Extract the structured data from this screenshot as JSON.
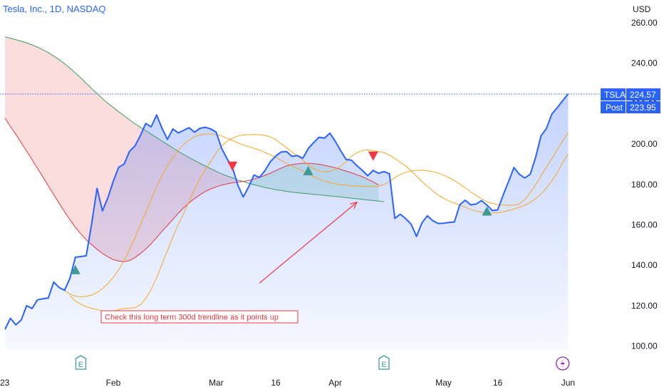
{
  "header": {
    "title": "Tesla, Inc., 1D, NASDAQ"
  },
  "colors": {
    "price_line": "#2962ff",
    "ma_fast": "#f5a623",
    "ma_slow_red": "#e0383e",
    "ma_green": "#3f9a62",
    "bearish_fill": "#fbd7d7",
    "bullish_fill": "#d6efe0",
    "price_area": "#e3ebff",
    "buy_marker": "#3d9a95",
    "sell_marker": "#f23645",
    "label_bg": "#2962ff",
    "earnings_icon": "#3d9a95",
    "flash_icon": "#9c27b0"
  },
  "chart_data": {
    "type": "line",
    "currency": "USD",
    "ylim": [
      93,
      265
    ],
    "yticks": [
      "100.00",
      "120.00",
      "140.00",
      "160.00",
      "180.00",
      "200.00",
      "220.00",
      "240.00",
      "260.00"
    ],
    "ytick_values": [
      100,
      120,
      140,
      160,
      180,
      200,
      220,
      240,
      260
    ],
    "xticks": [
      "23",
      "Feb",
      "Mar",
      "16",
      "Apr",
      "May",
      "16",
      "Jun"
    ],
    "xtick_index": [
      0,
      20,
      39,
      50,
      61,
      81,
      91,
      104
    ],
    "series": [
      {
        "key": "price",
        "values": [
          108.1,
          113.6,
          110.3,
          112.7,
          119.8,
          118.4,
          122.7,
          123.2,
          123.6,
          131.5,
          128.8,
          127.4,
          133.4,
          143.8,
          144.1,
          144.5,
          160.3,
          177.9,
          166.7,
          173.2,
          181.4,
          188.3,
          189.9,
          196.2,
          198.9,
          204.0,
          210.0,
          208.3,
          214.2,
          207.6,
          202.1,
          207.3,
          205.3,
          206.6,
          207.9,
          205.7,
          207.6,
          208.1,
          207.3,
          205.7,
          197.8,
          192.6,
          188.3,
          179.5,
          173.6,
          178.6,
          184.5,
          183.3,
          186.6,
          191.0,
          193.9,
          195.9,
          196.1,
          193.7,
          194.1,
          192.8,
          197.5,
          200.5,
          203.2,
          202.7,
          205.2,
          201.2,
          196.5,
          192.2,
          191.8,
          189.1,
          186.8,
          184.1,
          186.8,
          185.3,
          186.2,
          185.1,
          163.0,
          165.1,
          162.9,
          160.2,
          154.1,
          160.8,
          164.3,
          161.9,
          160.5,
          160.6,
          161.0,
          161.2,
          169.8,
          172.0,
          169.7,
          170.1,
          171.8,
          169.6,
          166.9,
          167.2,
          174.5,
          181.2,
          188.2,
          184.8,
          183.0,
          184.8,
          193.2,
          203.9,
          207.5,
          214.7,
          217.8,
          221.3,
          224.6
        ],
        "color": "#2962ff"
      },
      {
        "key": "ma_fast",
        "values": [
          124.7,
          122.1,
          120.5,
          119.3,
          118.5,
          117.9,
          117.2,
          116.9,
          117.1,
          117.8,
          118.4,
          118.6,
          118.8,
          120.3,
          123.4,
          127.8,
          133.6,
          140.4,
          147.0,
          153.8,
          160.0,
          165.4,
          171.4,
          177.3,
          182.8,
          187.2,
          191.1,
          195.5,
          198.8,
          201.2,
          202.7,
          203.8,
          204.3,
          204.4,
          204.5,
          204.4,
          204.1,
          203.3,
          202.0,
          199.9,
          198.0,
          195.9,
          193.9,
          191.8,
          189.5,
          187.7,
          186.5,
          186.0,
          186.3,
          187.3,
          188.9,
          191.1,
          193.8,
          195.5,
          196.6,
          197.0,
          196.5,
          196.1,
          195.6,
          194.3,
          192.7,
          190.8,
          189.0,
          186.5,
          184.0,
          181.3,
          178.9,
          176.6,
          174.5,
          173.1,
          171.6,
          170.6,
          169.5,
          168.5,
          167.5,
          166.6,
          166.0,
          165.7,
          165.7,
          165.8,
          166.2,
          166.9,
          167.7,
          168.5,
          169.5,
          170.9,
          172.8,
          175.0,
          178.0,
          181.6,
          185.7,
          190.7,
          194.9
        ],
        "offset": 12,
        "color": "#f5a623"
      },
      {
        "key": "ma_mid",
        "values": [
          127.3,
          125.5,
          124.5,
          124.2,
          124.4,
          125.0,
          126.3,
          128.2,
          130.7,
          133.8,
          137.6,
          142.2,
          147.5,
          153.4,
          159.8,
          166.2,
          172.6,
          178.7,
          184.3,
          189.1,
          193.2,
          196.7,
          199.6,
          201.8,
          203.4,
          204.3,
          204.8,
          204.8,
          204.5,
          203.8,
          202.8,
          201.6,
          200.4,
          199.4,
          198.5,
          197.7,
          196.8,
          195.7,
          194.5,
          193.2,
          191.8,
          190.3,
          189.0,
          187.7,
          186.4,
          185.0,
          183.6,
          182.5,
          181.6,
          180.8,
          180.1,
          179.6,
          179.4,
          179.2,
          179.0,
          178.9,
          178.8,
          178.7,
          178.9,
          179.8,
          181.2,
          183.2,
          184.7,
          185.8,
          186.5,
          186.8,
          186.9,
          186.6,
          186.2,
          185.5,
          184.4,
          183.1,
          181.7,
          180.0,
          178.1,
          176.2,
          174.4,
          172.7,
          171.3,
          170.4,
          169.8,
          169.6,
          169.5,
          169.5,
          170.1,
          172.3,
          175.8,
          179.6,
          184.1,
          188.3,
          192.6,
          197.0,
          201.4,
          205.4
        ],
        "offset": 11,
        "color": "#f5a623"
      },
      {
        "key": "ma_red",
        "values": [
          212.7,
          208.5,
          204.6,
          200.4,
          196.3,
          192.1,
          187.8,
          183.5,
          179.1,
          174.8,
          170.5,
          166.3,
          162.3,
          158.6,
          155.3,
          152.5,
          150.0,
          147.7,
          145.7,
          144.0,
          142.6,
          141.9,
          141.6,
          142.1,
          143.6,
          145.6,
          147.8,
          150.5,
          153.5,
          156.6,
          159.5,
          162.5,
          165.5,
          168.2,
          170.7,
          172.8,
          174.7,
          176.3,
          177.6,
          178.6,
          179.5,
          180.1,
          180.6,
          181.0,
          181.3,
          181.7,
          182.5,
          183.3,
          184.3,
          185.4,
          186.7,
          187.9,
          189.0,
          189.6,
          190.0,
          190.3,
          190.3,
          190.1,
          189.8,
          189.3,
          188.7,
          188.1,
          187.3,
          186.4,
          185.6,
          184.6,
          183.7,
          182.4,
          181.1,
          179.6
        ],
        "offset": 0,
        "color": "#e0383e"
      },
      {
        "key": "ma_green",
        "values": [
          252.9,
          252.2,
          251.5,
          250.7,
          249.9,
          248.9,
          247.8,
          246.5,
          245.1,
          243.4,
          241.6,
          239.6,
          237.4,
          235.0,
          232.5,
          229.9,
          227.3,
          224.8,
          222.3,
          220.0,
          217.9,
          215.8,
          213.8,
          211.8,
          209.9,
          208.1,
          206.4,
          204.7,
          203.0,
          201.3,
          199.6,
          197.9,
          196.2,
          194.6,
          193.1,
          191.7,
          190.3,
          188.9,
          187.6,
          186.3,
          185.1,
          184.0,
          183.1,
          182.1,
          181.3,
          180.4,
          179.7,
          179.0,
          178.3,
          177.8,
          177.2,
          176.8,
          176.4,
          176.0,
          175.7,
          175.4,
          175.2,
          174.9,
          174.7,
          174.4,
          174.1,
          173.9,
          173.6,
          173.3,
          173.0,
          172.7,
          172.4,
          172.1,
          171.9,
          171.6,
          171.3
        ],
        "offset": 0,
        "color": "#3f9a62"
      }
    ],
    "signals": [
      {
        "type": "buy",
        "index": 13,
        "value": 137.5
      },
      {
        "type": "sell",
        "index": 42,
        "value": 189
      },
      {
        "type": "buy",
        "index": 56,
        "value": 186.5
      },
      {
        "type": "sell",
        "index": 68,
        "value": 194
      },
      {
        "type": "buy",
        "index": 89,
        "value": 166.5
      }
    ],
    "earnings": [
      {
        "label": "E",
        "index": 14
      },
      {
        "label": "E",
        "index": 70
      }
    ],
    "flash_index": 103,
    "last_price": {
      "symbol": "TSLA",
      "value": "224.57",
      "post_label": "Post",
      "post_value": "223.95",
      "level": 224.57
    },
    "annotation": {
      "text": "Check this long term 300d trendline as it points up"
    },
    "arrow": {
      "from": [
        47,
        131
      ],
      "to": [
        65,
        171
      ]
    },
    "grid": false
  }
}
